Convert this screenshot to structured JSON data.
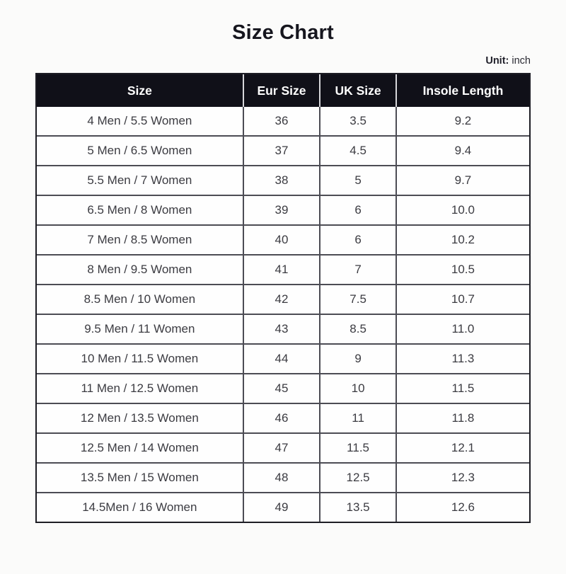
{
  "page": {
    "title": "Size Chart",
    "unit_label": "Unit:",
    "unit_value": " inch"
  },
  "colors": {
    "page_background": "#fbfbfa",
    "header_background": "#101018",
    "header_text": "#ffffff",
    "header_divider": "#d6d6da",
    "outer_border": "#1d1d24",
    "inner_border": "#4c4c54",
    "cell_text": "#3b3b41",
    "title_text": "#16161e"
  },
  "chart_data": {
    "type": "table",
    "title": "Size Chart",
    "unit": "inch",
    "columns": [
      "Size",
      "Eur Size",
      "UK Size",
      "Insole Length"
    ],
    "rows": [
      [
        "4 Men / 5.5 Women",
        "36",
        "3.5",
        "9.2"
      ],
      [
        "5 Men / 6.5 Women",
        "37",
        "4.5",
        "9.4"
      ],
      [
        "5.5 Men / 7 Women",
        "38",
        "5",
        "9.7"
      ],
      [
        "6.5 Men / 8 Women",
        "39",
        "6",
        "10.0"
      ],
      [
        "7 Men / 8.5 Women",
        "40",
        "6",
        "10.2"
      ],
      [
        "8 Men / 9.5 Women",
        "41",
        "7",
        "10.5"
      ],
      [
        "8.5 Men / 10 Women",
        "42",
        "7.5",
        "10.7"
      ],
      [
        "9.5 Men / 11 Women",
        "43",
        "8.5",
        "11.0"
      ],
      [
        "10 Men / 11.5 Women",
        "44",
        "9",
        "11.3"
      ],
      [
        "11 Men / 12.5 Women",
        "45",
        "10",
        "11.5"
      ],
      [
        "12 Men / 13.5 Women",
        "46",
        "11",
        "11.8"
      ],
      [
        "12.5 Men / 14 Women",
        "47",
        "11.5",
        "12.1"
      ],
      [
        "13.5 Men / 15 Women",
        "48",
        "12.5",
        "12.3"
      ],
      [
        "14.5Men / 16 Women",
        "49",
        "13.5",
        "12.6"
      ]
    ]
  }
}
